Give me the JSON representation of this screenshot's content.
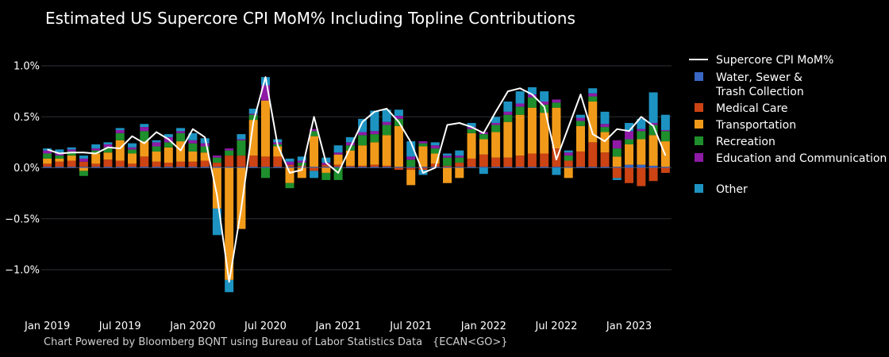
{
  "chart_data": {
    "type": "bar",
    "title": "Estimated US Supercore CPI MoM% Including Topline Contributions",
    "footer": "Chart Powered by Bloomberg BQNT using Bureau of Labor Statistics Data",
    "footer_code": "{ECAN<GO>}",
    "xlabel": "",
    "ylabel": "",
    "ylim": [
      -1.35,
      1.05
    ],
    "yticks": [
      1.0,
      0.5,
      0.0,
      -0.5,
      -1.0
    ],
    "ytick_labels": [
      "1.0%",
      "0.5%",
      "0.0%",
      "−0.5%",
      "−1.0%"
    ],
    "xticks": [
      {
        "index": 0,
        "label": "Jan 2019"
      },
      {
        "index": 6,
        "label": "Jul 2019"
      },
      {
        "index": 12,
        "label": "Jan 2020"
      },
      {
        "index": 18,
        "label": "Jul 2020"
      },
      {
        "index": 24,
        "label": "Jan 2021"
      },
      {
        "index": 30,
        "label": "Jul 2021"
      },
      {
        "index": 36,
        "label": "Jan 2022"
      },
      {
        "index": 42,
        "label": "Jul 2022"
      },
      {
        "index": 48,
        "label": "Jan 2023"
      }
    ],
    "grid": true,
    "barmode": "relative",
    "legend_position": "right",
    "categories": [
      "2019-01",
      "2019-02",
      "2019-03",
      "2019-04",
      "2019-05",
      "2019-06",
      "2019-07",
      "2019-08",
      "2019-09",
      "2019-10",
      "2019-11",
      "2019-12",
      "2020-01",
      "2020-02",
      "2020-03",
      "2020-04",
      "2020-05",
      "2020-06",
      "2020-07",
      "2020-08",
      "2020-09",
      "2020-10",
      "2020-11",
      "2020-12",
      "2021-01",
      "2021-02",
      "2021-03",
      "2021-04",
      "2021-05",
      "2021-06",
      "2021-07",
      "2021-08",
      "2021-09",
      "2021-10",
      "2021-11",
      "2021-12",
      "2022-01",
      "2022-02",
      "2022-03",
      "2022-04",
      "2022-05",
      "2022-06",
      "2022-07",
      "2022-08",
      "2022-09",
      "2022-10",
      "2022-11",
      "2022-12",
      "2023-01",
      "2023-02",
      "2023-03",
      "2023-04"
    ],
    "series": [
      {
        "name": "Water, Sewer & Trash Collection",
        "color": "#3a66c4",
        "values": [
          0.01,
          0.01,
          0.01,
          0.01,
          0.01,
          0.01,
          0.01,
          0.01,
          0.01,
          0.01,
          0.01,
          0.01,
          0.01,
          0.01,
          0.01,
          0.01,
          0.01,
          0.01,
          0.01,
          0.01,
          0.01,
          0.01,
          0.01,
          0.01,
          0.01,
          0.01,
          0.01,
          0.01,
          0.01,
          0.01,
          0.01,
          0.01,
          0.01,
          0.01,
          0.01,
          0.01,
          0.01,
          0.01,
          0.01,
          0.01,
          0.01,
          0.01,
          0.01,
          0.01,
          0.01,
          0.01,
          0.01,
          0.01,
          0.03,
          0.03,
          0.02,
          0.01
        ]
      },
      {
        "name": "Medical Care",
        "color": "#cc4314",
        "values": [
          0.03,
          0.05,
          0.06,
          0.05,
          0.03,
          0.07,
          0.06,
          0.03,
          0.1,
          0.05,
          0.04,
          0.05,
          0.05,
          0.06,
          0.04,
          0.11,
          0.11,
          0.11,
          0.1,
          0.1,
          0.02,
          0.01,
          -0.03,
          0.02,
          0.02,
          0.01,
          0.01,
          0.02,
          0.01,
          -0.02,
          -0.02,
          -0.02,
          0.03,
          0.01,
          0.04,
          0.08,
          0.12,
          0.09,
          0.09,
          0.11,
          0.13,
          0.13,
          0.18,
          0.06,
          0.15,
          0.24,
          0.14,
          -0.1,
          -0.15,
          -0.18,
          -0.13,
          -0.05
        ]
      },
      {
        "name": "Transportation",
        "color": "#f19a1a",
        "values": [
          0.05,
          0.03,
          0.05,
          -0.03,
          0.1,
          0.07,
          0.2,
          0.1,
          0.15,
          0.1,
          0.15,
          0.2,
          0.1,
          0.08,
          -0.4,
          -1.1,
          -0.6,
          0.35,
          0.55,
          0.1,
          -0.15,
          -0.1,
          0.3,
          -0.05,
          0.1,
          0.15,
          0.2,
          0.22,
          0.3,
          0.4,
          -0.15,
          0.2,
          0.1,
          -0.15,
          -0.1,
          0.25,
          0.15,
          0.25,
          0.35,
          0.4,
          0.45,
          0.4,
          0.4,
          -0.1,
          0.25,
          0.4,
          0.2,
          0.1,
          0.2,
          0.25,
          0.3,
          0.25
        ]
      },
      {
        "name": "Recreation",
        "color": "#1e8f2c",
        "values": [
          0.05,
          0.03,
          0.04,
          -0.05,
          0.03,
          0.05,
          0.07,
          0.04,
          0.1,
          0.05,
          0.05,
          0.08,
          0.08,
          0.06,
          0.05,
          0.05,
          0.15,
          0.05,
          -0.1,
          0.02,
          -0.05,
          0.03,
          0.05,
          -0.07,
          -0.12,
          0.05,
          0.1,
          0.08,
          0.1,
          0.07,
          0.07,
          0.03,
          0.05,
          0.08,
          0.05,
          0.04,
          0.05,
          0.07,
          0.07,
          0.08,
          0.1,
          0.08,
          0.05,
          0.05,
          0.05,
          0.05,
          0.05,
          0.08,
          0.05,
          0.08,
          0.1,
          0.1
        ]
      },
      {
        "name": "Education and Communication",
        "color": "#8e1aa6",
        "values": [
          0.03,
          0.02,
          0.02,
          0.03,
          0.02,
          0.03,
          0.03,
          0.02,
          0.04,
          0.04,
          0.05,
          0.02,
          0.03,
          0.03,
          0.02,
          0.02,
          0.01,
          0.01,
          0.15,
          0.02,
          0.03,
          0.02,
          0.02,
          0.02,
          0.02,
          0.03,
          0.03,
          0.03,
          0.03,
          0.03,
          0.03,
          0.02,
          0.03,
          0.02,
          0.02,
          0.02,
          0.02,
          0.02,
          0.03,
          0.03,
          0.03,
          0.03,
          0.03,
          0.03,
          0.03,
          0.03,
          0.03,
          0.08,
          0.08,
          0.02,
          0.02,
          0.01
        ]
      },
      {
        "name": "Other",
        "color": "#1d93c2",
        "values": [
          0.02,
          0.04,
          0.02,
          0.03,
          0.04,
          0.02,
          0.02,
          0.04,
          0.03,
          0.02,
          0.03,
          0.03,
          0.07,
          0.05,
          -0.26,
          -0.12,
          0.05,
          0.05,
          0.08,
          0.03,
          0.03,
          0.04,
          -0.07,
          0.05,
          0.07,
          0.05,
          0.13,
          0.2,
          0.12,
          0.06,
          0.15,
          -0.05,
          0.03,
          0.02,
          0.05,
          0.04,
          -0.06,
          0.06,
          0.1,
          0.12,
          0.07,
          0.1,
          -0.07,
          0.02,
          0.03,
          0.05,
          0.12,
          -0.02,
          0.08,
          0.1,
          0.3,
          0.15
        ]
      }
    ],
    "line": {
      "name": "Supercore CPI MoM%",
      "color": "#ffffff",
      "values": [
        0.18,
        0.14,
        0.15,
        0.15,
        0.14,
        0.2,
        0.19,
        0.31,
        0.24,
        0.35,
        0.28,
        0.17,
        0.38,
        0.3,
        -0.27,
        -1.12,
        -0.4,
        0.45,
        0.89,
        0.22,
        -0.05,
        -0.02,
        0.5,
        0.05,
        -0.05,
        0.2,
        0.45,
        0.55,
        0.58,
        0.45,
        0.25,
        -0.05,
        0.0,
        0.42,
        0.44,
        0.4,
        0.34,
        0.55,
        0.75,
        0.78,
        0.72,
        0.6,
        0.08,
        0.4,
        0.72,
        0.33,
        0.26,
        0.38,
        0.36,
        0.5,
        0.41,
        0.12
      ]
    }
  }
}
